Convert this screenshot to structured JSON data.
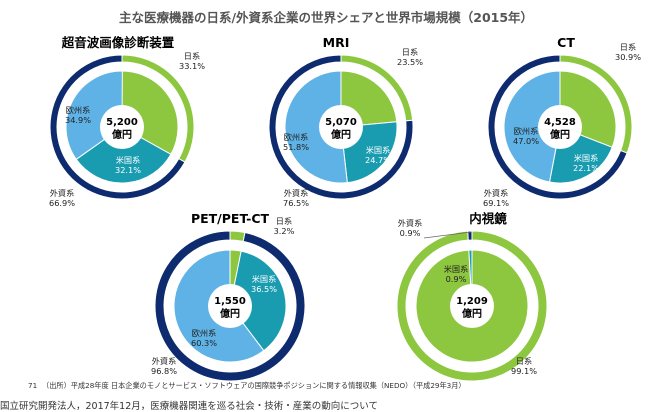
{
  "title": "主な医療機器の日系/外資系企業の世界シェアと世界市場規模（2015年）",
  "colors": {
    "japan": "#8dc63f",
    "europe": "#5fb2e6",
    "us": "#1a9cb0",
    "foreign": "#0d2b6e",
    "center": "#ffffff"
  },
  "chart_data": [
    {
      "type": "pie",
      "title": "超音波画像診断装置",
      "center": {
        "value": "5,200",
        "unit": "億円"
      },
      "outer": [
        {
          "name": "日系",
          "value": 33.1,
          "label": "日系",
          "pct": "33.1%"
        },
        {
          "name": "外資系",
          "value": 66.9,
          "label": "外資系",
          "pct": "66.9%"
        }
      ],
      "inner": [
        {
          "name": "日系",
          "value": 33.1
        },
        {
          "name": "米国系",
          "value": 32.1,
          "label": "米国系",
          "pct": "32.1%"
        },
        {
          "name": "欧州系",
          "value": 34.9,
          "label": "欧州系",
          "pct": "34.9%"
        }
      ]
    },
    {
      "type": "pie",
      "title": "MRI",
      "center": {
        "value": "5,070",
        "unit": "億円"
      },
      "outer": [
        {
          "name": "日系",
          "value": 23.5,
          "label": "日系",
          "pct": "23.5%"
        },
        {
          "name": "外資系",
          "value": 76.5,
          "label": "外資系",
          "pct": "76.5%"
        }
      ],
      "inner": [
        {
          "name": "日系",
          "value": 23.5
        },
        {
          "name": "米国系",
          "value": 24.7,
          "label": "米国系",
          "pct": "24.7%"
        },
        {
          "name": "欧州系",
          "value": 51.8,
          "label": "欧州系",
          "pct": "51.8%"
        }
      ]
    },
    {
      "type": "pie",
      "title": "CT",
      "center": {
        "value": "4,528",
        "unit": "億円"
      },
      "outer": [
        {
          "name": "日系",
          "value": 30.9,
          "label": "日系",
          "pct": "30.9%"
        },
        {
          "name": "外資系",
          "value": 69.1,
          "label": "外資系",
          "pct": "69.1%"
        }
      ],
      "inner": [
        {
          "name": "日系",
          "value": 30.9
        },
        {
          "name": "米国系",
          "value": 22.1,
          "label": "米国系",
          "pct": "22.1%"
        },
        {
          "name": "欧州系",
          "value": 47.0,
          "label": "欧州系",
          "pct": "47.0%"
        }
      ]
    },
    {
      "type": "pie",
      "title": "PET/PET-CT",
      "center": {
        "value": "1,550",
        "unit": "億円"
      },
      "outer": [
        {
          "name": "日系",
          "value": 3.2,
          "label": "日系",
          "pct": "3.2%"
        },
        {
          "name": "外資系",
          "value": 96.8,
          "label": "外資系",
          "pct": "96.8%"
        }
      ],
      "inner": [
        {
          "name": "日系",
          "value": 3.2
        },
        {
          "name": "米国系",
          "value": 36.5,
          "label": "米国系",
          "pct": "36.5%"
        },
        {
          "name": "欧州系",
          "value": 60.3,
          "label": "欧州系",
          "pct": "60.3%"
        }
      ]
    },
    {
      "type": "pie",
      "title": "内視鏡",
      "center": {
        "value": "1,209",
        "unit": "億円"
      },
      "outer": [
        {
          "name": "日系",
          "value": 99.1,
          "label": "日系",
          "pct": "99.1%"
        },
        {
          "name": "外資系",
          "value": 0.9,
          "label": "外資系",
          "pct": "0.9%"
        }
      ],
      "inner": [
        {
          "name": "日系",
          "value": 99.1
        },
        {
          "name": "米国系",
          "value": 0.9,
          "label": "米国系",
          "pct": "0.9%"
        },
        {
          "name": "欧州系",
          "value": 0.0
        }
      ]
    }
  ],
  "footer": {
    "page_number": "71",
    "source": "（出所）平成28年度 日本企業のモノとサービス・ソフトウェアの国際競争ポジションに関する情報収集（NEDO）（平成29年3月）",
    "caption": "国立研究開発法人，2017年12月，医療機器関連を巡る社会・技術・産業の動向について"
  }
}
